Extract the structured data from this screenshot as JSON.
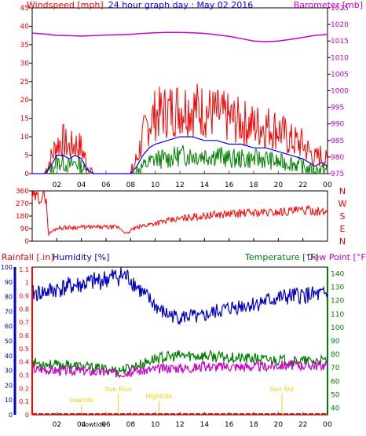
{
  "chart_data": [
    {
      "type": "line",
      "title": "24 hour graph day : May 02 2016",
      "left_axis_label": "Windspeed [mph]",
      "right_axis_label": "Barometer [mb]",
      "left_ticks": [
        "45",
        "40",
        "35",
        "30",
        "25",
        "20",
        "15",
        "10",
        "5",
        "0"
      ],
      "right_ticks": [
        "1025",
        "1020",
        "1015",
        "1010",
        "1005",
        "1000",
        "995",
        "990",
        "985",
        "980",
        "975"
      ],
      "x_ticks": [
        "02",
        "04",
        "06",
        "08",
        "10",
        "12",
        "14",
        "16",
        "18",
        "20",
        "22",
        "00"
      ],
      "ylim_left": [
        0,
        45
      ],
      "ylim_right": [
        975,
        1025
      ],
      "colors": {
        "gust": "#ff0000",
        "average": "#0000ff",
        "speed": "#008000",
        "barometer": "#cc00cc"
      },
      "series": {
        "barometer": {
          "x": [
            0,
            1,
            2,
            3,
            4,
            5,
            6,
            7,
            8,
            9,
            10,
            11,
            12,
            13,
            14,
            15,
            16,
            17,
            18,
            19,
            20,
            21,
            22,
            23,
            24
          ],
          "values": [
            1017.4,
            1017.1,
            1016.7,
            1016.6,
            1016.5,
            1016.6,
            1016.8,
            1016.9,
            1017.0,
            1017.3,
            1017.5,
            1017.6,
            1017.6,
            1017.5,
            1017.3,
            1016.9,
            1016.4,
            1015.7,
            1015.0,
            1014.8,
            1015.0,
            1015.5,
            1016.1,
            1016.7,
            1017.0
          ]
        },
        "gust": {
          "x": [
            0,
            1,
            1.5,
            2,
            2.5,
            3,
            3.5,
            4,
            4.5,
            5,
            6,
            7,
            7.5,
            8,
            8.5,
            9,
            9.5,
            10,
            11,
            12,
            13,
            14,
            15,
            16,
            17,
            18,
            19,
            20,
            21,
            22,
            22.5,
            23,
            23.5,
            24
          ],
          "values": [
            0,
            0,
            4,
            8,
            9,
            7,
            8,
            7,
            2,
            0,
            0,
            0,
            0,
            0,
            4,
            10,
            14,
            16,
            17,
            18,
            18,
            17,
            16,
            15,
            14,
            13,
            13,
            12,
            9,
            8,
            6,
            4,
            5,
            3
          ]
        },
        "average": {
          "x": [
            0,
            1,
            1.5,
            2,
            2.5,
            3,
            3.5,
            4,
            4.5,
            5,
            6,
            7,
            7.5,
            8,
            8.5,
            9,
            9.5,
            10,
            11,
            12,
            13,
            14,
            15,
            16,
            17,
            18,
            19,
            20,
            21,
            22,
            22.5,
            23,
            23.5,
            24
          ],
          "values": [
            0,
            0,
            2,
            5,
            5,
            4,
            5,
            4,
            1,
            0,
            0,
            0,
            0,
            0,
            2,
            5,
            7,
            8,
            9,
            10,
            10,
            9,
            9,
            8,
            8,
            7,
            7,
            6,
            5,
            4,
            3,
            2,
            3,
            2
          ]
        },
        "speed": {
          "x": [
            0,
            1,
            1.5,
            2,
            2.5,
            3,
            3.5,
            4,
            4.5,
            5,
            6,
            7,
            7.5,
            8,
            8.5,
            9,
            9.5,
            10,
            11,
            12,
            13,
            14,
            15,
            16,
            17,
            18,
            19,
            20,
            21,
            22,
            22.5,
            23,
            23.5,
            24
          ],
          "values": [
            0,
            0,
            1,
            3,
            3,
            2,
            3,
            2,
            0,
            0,
            0,
            0,
            0,
            0,
            1,
            2,
            3,
            4,
            4,
            5,
            5,
            5,
            5,
            4,
            4,
            4,
            4,
            3,
            3,
            2,
            1,
            1,
            1,
            1
          ]
        }
      }
    },
    {
      "type": "line",
      "left_ticks": [
        "360",
        "270",
        "180",
        "90",
        "0"
      ],
      "right_labels": [
        "N",
        "W",
        "S",
        "E",
        "N"
      ],
      "x_ticks": [
        "02",
        "04",
        "06",
        "08",
        "10",
        "12",
        "14",
        "16",
        "18",
        "20",
        "22",
        "00"
      ],
      "ylim": [
        0,
        360
      ],
      "colors": {
        "direction": "#ff0000"
      },
      "series": {
        "direction": {
          "x": [
            0,
            1,
            1.15,
            1.3,
            2,
            4,
            6,
            7,
            7.3,
            7.8,
            8,
            8.5,
            9,
            10,
            11,
            12,
            13,
            14,
            15,
            16,
            17,
            18,
            19,
            20,
            21,
            22,
            23,
            23.5,
            24
          ],
          "values": [
            315,
            315,
            315,
            50,
            95,
            100,
            100,
            100,
            80,
            50,
            80,
            95,
            110,
            130,
            145,
            160,
            175,
            180,
            190,
            195,
            200,
            205,
            205,
            210,
            215,
            220,
            220,
            205,
            210
          ]
        }
      }
    },
    {
      "type": "line",
      "label_rainfall": "Rainfall [.in]",
      "label_humidity": "Humidity [%]",
      "label_temperature": "Temperature [°F]",
      "label_dewpoint": "Dew Point [°F]",
      "humidity_ticks": [
        "100",
        "90",
        "80",
        "70",
        "60",
        "50",
        "40",
        "30",
        "20",
        "10",
        "0"
      ],
      "rain_ticks": [
        "1.1",
        "1",
        "0.9",
        "0.8",
        "0.7",
        "0.6",
        "0.5",
        "0.4",
        "0.3",
        "0.2",
        "0.1",
        "0"
      ],
      "temp_ticks": [
        "140",
        "130",
        "120",
        "110",
        "100",
        "90",
        "80",
        "70",
        "60",
        "50",
        "40"
      ],
      "x_ticks": [
        "02",
        "04",
        "06",
        "08",
        "10",
        "12",
        "14",
        "16",
        "18",
        "20",
        "22",
        "00"
      ],
      "ylim_humidity": [
        0,
        100
      ],
      "ylim_temp": [
        35,
        145
      ],
      "colors": {
        "humidity": "#0000cc",
        "temperature": "#008000",
        "dewpoint": "#cc00cc",
        "rainfall": "#ff0000",
        "events": "#ffcc00"
      },
      "series": {
        "humidity": {
          "x": [
            0,
            1,
            2,
            3,
            4,
            5,
            6,
            7,
            7.5,
            8,
            8.5,
            9,
            9.5,
            10,
            10.5,
            11,
            12,
            13,
            13.5,
            14,
            15,
            16,
            17,
            18,
            19,
            20,
            21,
            22,
            23,
            24
          ],
          "values": [
            82,
            83,
            85,
            87,
            88,
            90,
            92,
            94,
            94,
            92,
            87,
            82,
            78,
            74,
            70,
            68,
            66,
            67,
            65,
            67,
            70,
            72,
            74,
            75,
            77,
            79,
            80,
            81,
            81,
            81
          ]
        },
        "temperature": {
          "x": [
            0,
            1,
            2,
            3,
            4,
            5,
            6,
            7,
            8,
            9,
            10,
            11,
            12,
            13,
            14,
            15,
            16,
            17,
            18,
            19,
            20,
            21,
            22,
            23,
            24
          ],
          "values": [
            74,
            73,
            72,
            72,
            71,
            70,
            69,
            68,
            70,
            73,
            77,
            78,
            79,
            79,
            79,
            78,
            78,
            77,
            77,
            76,
            76,
            75,
            75,
            75,
            75
          ]
        },
        "dewpoint": {
          "x": [
            0,
            1,
            2,
            3,
            4,
            5,
            6,
            7,
            8,
            9,
            10,
            11,
            12,
            13,
            14,
            15,
            16,
            17,
            18,
            19,
            20,
            21,
            22,
            23,
            24
          ],
          "values": [
            69,
            69,
            68,
            68,
            68,
            67,
            67,
            66,
            67,
            68,
            69,
            70,
            70,
            70,
            71,
            71,
            71,
            71,
            71,
            71,
            72,
            72,
            72,
            72,
            72
          ]
        },
        "rainfall": {
          "x": [
            0,
            24
          ],
          "values": [
            0,
            0
          ]
        }
      },
      "events": [
        {
          "label": "Lowtide",
          "x": 4
        },
        {
          "label": "Sun Rise",
          "x": 7
        },
        {
          "label": "Hightide",
          "x": 10.3
        },
        {
          "label": "Sun Set",
          "x": 20.3
        },
        {
          "label": "Lowtide",
          "x": 5
        }
      ]
    }
  ]
}
